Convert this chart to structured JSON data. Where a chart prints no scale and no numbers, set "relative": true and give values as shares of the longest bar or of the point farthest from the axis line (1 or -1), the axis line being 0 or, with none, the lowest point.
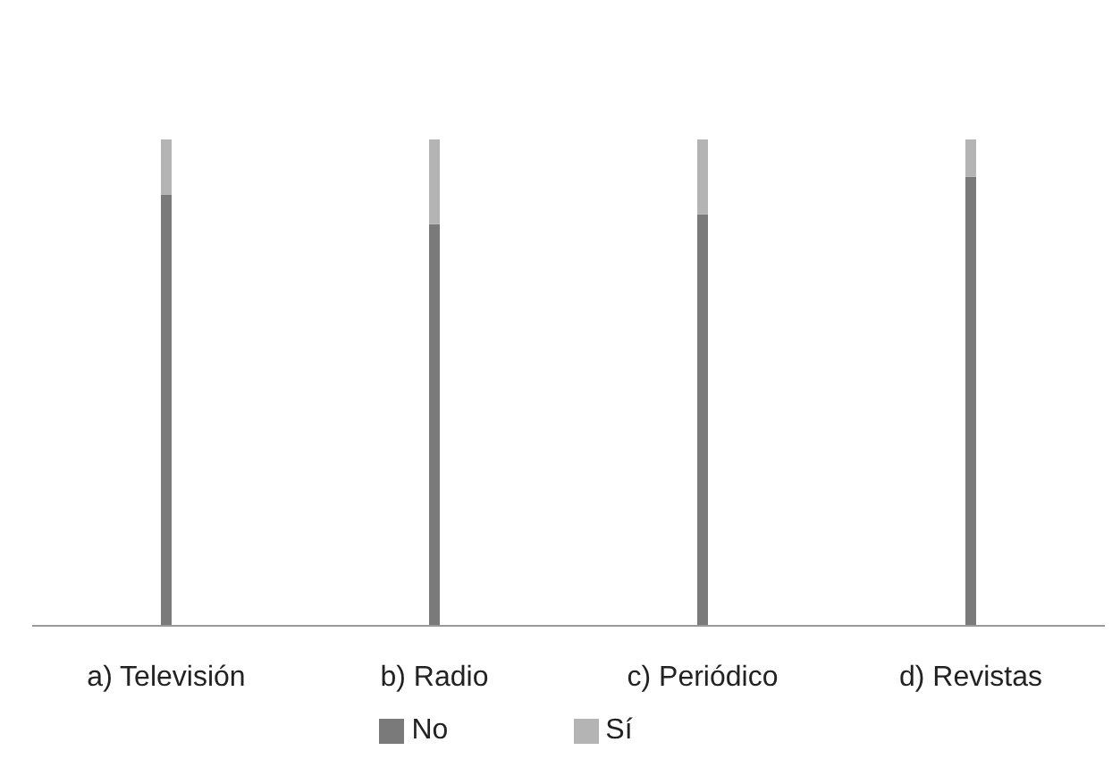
{
  "chart_data": {
    "type": "bar",
    "stacked": true,
    "relative": true,
    "categories": [
      "a) Televisión",
      "b) Radio",
      "c) Periódico",
      "d) Revistas"
    ],
    "series": [
      {
        "name": "No",
        "color": "#7a7a7a",
        "values": [
          0.887,
          0.826,
          0.846,
          0.923
        ]
      },
      {
        "name": "Sí",
        "color": "#b4b4b4",
        "values": [
          0.113,
          0.174,
          0.154,
          0.077
        ]
      }
    ],
    "legend": "bottom",
    "grid": false
  }
}
